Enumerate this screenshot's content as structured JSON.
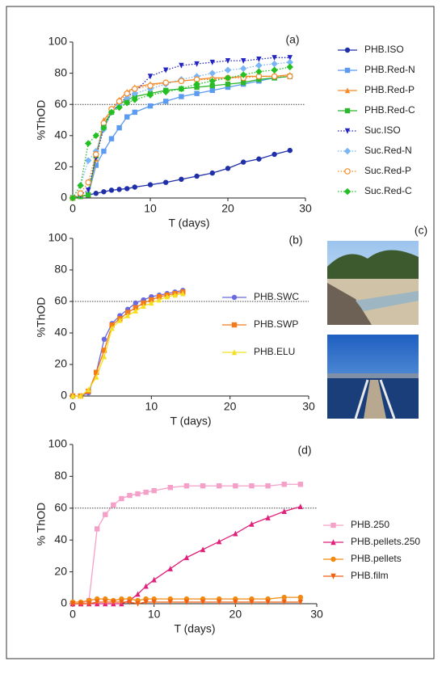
{
  "chart_data": [
    {
      "type": "line",
      "panel_label": "(a)",
      "xlabel": "T (days)",
      "ylabel": "%ThOD",
      "x": [
        0,
        1,
        2,
        3,
        4,
        5,
        6,
        7,
        8,
        10,
        12,
        14,
        16,
        18,
        20,
        22,
        24,
        26,
        28
      ],
      "series": [
        {
          "name": "PHB.ISO",
          "color": "#1f2fa8",
          "marker": "circle",
          "dash": "solid",
          "values": [
            0,
            1,
            2,
            3,
            4,
            5,
            5.5,
            6,
            7,
            8.5,
            10,
            12,
            14,
            16,
            19,
            23,
            25,
            28,
            30.5
          ]
        },
        {
          "name": "PHB.Red-N",
          "color": "#5b9bf0",
          "marker": "square",
          "dash": "solid",
          "values": [
            0,
            1,
            2,
            21,
            30,
            38,
            45,
            52,
            55,
            59,
            62,
            65,
            67,
            69,
            71,
            73,
            75,
            77,
            78
          ]
        },
        {
          "name": "PHB.Red-P",
          "color": "#f58a2a",
          "marker": "triangle",
          "dash": "solid",
          "values": [
            0,
            1,
            2,
            25,
            50,
            56,
            63,
            68,
            71,
            73,
            74,
            75,
            76,
            77,
            77,
            78,
            78,
            78,
            79
          ]
        },
        {
          "name": "PHB.Red-C",
          "color": "#2db82d",
          "marker": "square",
          "dash": "solid",
          "values": [
            0,
            1,
            2,
            27,
            47,
            55,
            60,
            63,
            65,
            67,
            69,
            70,
            71,
            72,
            73,
            74,
            76,
            77,
            78
          ]
        },
        {
          "name": "Suc.ISO",
          "color": "#2424c4",
          "marker": "triangle-down",
          "dash": "dotted",
          "values": [
            0,
            2,
            5,
            26,
            45,
            55,
            60,
            65,
            68,
            78,
            82,
            85,
            86,
            87,
            88,
            88,
            89,
            90,
            90
          ]
        },
        {
          "name": "Suc.Red-N",
          "color": "#7ab5f5",
          "marker": "diamond",
          "dash": "dotted",
          "values": [
            0,
            8,
            24,
            30,
            44,
            55,
            60,
            64,
            67,
            70,
            73,
            76,
            78,
            80,
            82,
            83,
            85,
            86,
            87
          ]
        },
        {
          "name": "Suc.Red-P",
          "color": "#f58a2a",
          "marker": "open-circle",
          "dash": "dotted",
          "values": [
            0,
            3,
            10,
            28,
            48,
            57,
            62,
            67,
            70,
            72,
            74,
            75,
            76,
            76,
            77,
            77,
            78,
            78,
            78
          ]
        },
        {
          "name": "Suc.Red-C",
          "color": "#22c022",
          "marker": "diamond",
          "dash": "dotted",
          "values": [
            0,
            8,
            35,
            40,
            45,
            55,
            58,
            61,
            63,
            66,
            68,
            70,
            73,
            75,
            77,
            79,
            81,
            82,
            84
          ]
        }
      ],
      "xlim": [
        0,
        30
      ],
      "ylim": [
        0,
        100
      ],
      "xticks": [
        0,
        10,
        20,
        30
      ],
      "yticks": [
        0,
        20,
        40,
        60,
        80,
        100
      ],
      "hline": 60
    },
    {
      "type": "line",
      "panel_label": "(b)",
      "xlabel": "T (days)",
      "ylabel": "%ThOD",
      "x": [
        0,
        1,
        2,
        3,
        4,
        5,
        6,
        7,
        8,
        9,
        10,
        11,
        12,
        13,
        14
      ],
      "series": [
        {
          "name": "PHB.SWC",
          "color": "#6a6ae0",
          "marker": "circle",
          "dash": "solid",
          "values": [
            0,
            0,
            2,
            15,
            36,
            46,
            51,
            55,
            59,
            61,
            63,
            64,
            65,
            66,
            67
          ]
        },
        {
          "name": "PHB.SWP",
          "color": "#f57a1a",
          "marker": "square",
          "dash": "solid",
          "values": [
            0,
            0,
            3,
            15,
            29,
            45,
            49,
            53,
            56,
            59,
            61,
            63,
            64,
            65,
            66
          ]
        },
        {
          "name": "PHB.ELU",
          "color": "#f5e020",
          "marker": "triangle",
          "dash": "solid",
          "values": [
            0,
            0,
            4,
            12,
            25,
            43,
            48,
            51,
            54,
            57,
            59,
            61,
            63,
            64,
            65
          ]
        }
      ],
      "xlim": [
        0,
        30
      ],
      "ylim": [
        0,
        100
      ],
      "xticks": [
        0,
        10,
        20,
        30
      ],
      "yticks": [
        0,
        20,
        40,
        60,
        80,
        100
      ],
      "hline": 60
    },
    {
      "type": "line",
      "panel_label": "(d)",
      "xlabel": "T (days)",
      "ylabel": "% ThOD",
      "x": [
        0,
        1,
        2,
        3,
        4,
        5,
        6,
        7,
        8,
        9,
        10,
        12,
        14,
        16,
        18,
        20,
        22,
        24,
        26,
        28
      ],
      "series": [
        {
          "name": "PHB.250",
          "color": "#f5a0c8",
          "marker": "square",
          "dash": "solid",
          "values": [
            0,
            0,
            2,
            47,
            56,
            62,
            66,
            68,
            69,
            70,
            71,
            73,
            74,
            74,
            74,
            74,
            74,
            74,
            75,
            75
          ]
        },
        {
          "name": "PHB.pellets.250",
          "color": "#e0207a",
          "marker": "triangle",
          "dash": "solid",
          "values": [
            0,
            0,
            0,
            0,
            0,
            0,
            0,
            2,
            6,
            11,
            15,
            22,
            29,
            34,
            39,
            44,
            50,
            54,
            58,
            61
          ]
        },
        {
          "name": "PHB.pellets",
          "color": "#f08a10",
          "marker": "circle",
          "dash": "solid",
          "values": [
            1,
            1,
            2,
            3,
            3,
            2,
            3,
            3,
            2,
            3,
            3,
            3,
            3,
            3,
            3,
            3,
            3,
            3,
            4,
            4
          ]
        },
        {
          "name": "PHB.film",
          "color": "#f06010",
          "marker": "triangle-down",
          "dash": "solid",
          "values": [
            0,
            0,
            0,
            1,
            1,
            1,
            1,
            1,
            0,
            1,
            1,
            1,
            1,
            1,
            1,
            1,
            1,
            1,
            1,
            1
          ]
        }
      ],
      "xlim": [
        0,
        30
      ],
      "ylim": [
        0,
        100
      ],
      "xticks": [
        0,
        10,
        20,
        30
      ],
      "yticks": [
        0,
        20,
        40,
        60,
        80,
        100
      ],
      "hline": 60
    }
  ],
  "photos": {
    "label": "(c)"
  }
}
